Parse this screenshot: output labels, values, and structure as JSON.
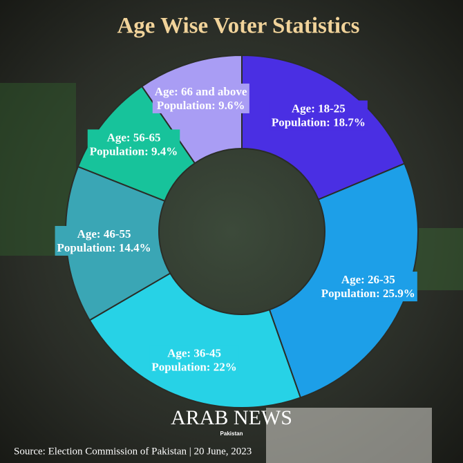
{
  "chart_data": {
    "type": "donut",
    "title": "Age Wise Voter Statistics",
    "categories": [
      "Age: 18-25",
      "Age: 26-35",
      "Age: 36-45",
      "Age: 46-55",
      "Age: 56-65",
      "Age: 66 and above"
    ],
    "values": [
      18.7,
      25.9,
      22,
      14.4,
      9.4,
      9.6
    ],
    "value_labels": [
      "Population: 18.7%",
      "Population: 25.9%",
      "Population: 22%",
      "Population: 14.4%",
      "Population: 9.4%",
      "Population: 9.6%"
    ],
    "colors": [
      "#4a2fe3",
      "#1d9fe8",
      "#27d2e6",
      "#3aa6b5",
      "#17c39b",
      "#a99df4"
    ],
    "logo": "ARAB NEWS",
    "logo_sub": "Pakistan",
    "source": "Source: Election Commission of Pakistan | 20 June, 2023"
  }
}
